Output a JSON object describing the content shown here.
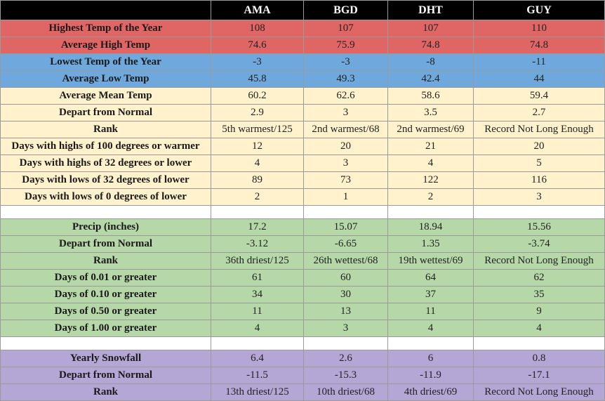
{
  "header": {
    "corner": "",
    "stations": [
      "AMA",
      "BGD",
      "DHT",
      "GUY"
    ]
  },
  "colors": {
    "red": "#e06666",
    "blue": "#6fa8dc",
    "yellow": "#fff2cc",
    "green": "#b6d7a8",
    "purple": "#b4a7d6",
    "header": "#000000"
  },
  "rows": [
    {
      "label": "Highest Temp of the Year",
      "values": [
        "108",
        "107",
        "107",
        "110"
      ]
    },
    {
      "label": "Average High Temp",
      "values": [
        "74.6",
        "75.9",
        "74.8",
        "74.8"
      ]
    },
    {
      "label": "Lowest Temp of the Year",
      "values": [
        "-3",
        "-3",
        "-8",
        "-11"
      ]
    },
    {
      "label": "Average Low Temp",
      "values": [
        "45.8",
        "49.3",
        "42.4",
        "44"
      ]
    },
    {
      "label": "Average Mean Temp",
      "values": [
        "60.2",
        "62.6",
        "58.6",
        "59.4"
      ]
    },
    {
      "label": "Depart from Normal",
      "values": [
        "2.9",
        "3",
        "3.5",
        "2.7"
      ]
    },
    {
      "label": "Rank",
      "values": [
        "5th warmest/125",
        "2nd warmest/68",
        "2nd warmest/69",
        "Record Not Long Enough"
      ]
    },
    {
      "label": "Days with highs of 100 degrees or warmer",
      "values": [
        "12",
        "20",
        "21",
        "20"
      ]
    },
    {
      "label": "Days with highs of 32 degrees or lower",
      "values": [
        "4",
        "3",
        "4",
        "5"
      ]
    },
    {
      "label": "Days with lows of 32 degrees of lower",
      "values": [
        "89",
        "73",
        "122",
        "116"
      ]
    },
    {
      "label": "Days with lows of 0 degrees of lower",
      "values": [
        "2",
        "1",
        "2",
        "3"
      ]
    },
    {
      "label": "Precip (inches)",
      "values": [
        "17.2",
        "15.07",
        "18.94",
        "15.56"
      ]
    },
    {
      "label": "Depart from Normal",
      "values": [
        "-3.12",
        "-6.65",
        "1.35",
        "-3.74"
      ]
    },
    {
      "label": "Rank",
      "values": [
        "36th driest/125",
        "26th wettest/68",
        "19th wettest/69",
        "Record Not Long Enough"
      ]
    },
    {
      "label": "Days of 0.01 or greater",
      "values": [
        "61",
        "60",
        "64",
        "62"
      ]
    },
    {
      "label": "Days of 0.10 or greater",
      "values": [
        "34",
        "30",
        "37",
        "35"
      ]
    },
    {
      "label": "Days of 0.50 or greater",
      "values": [
        "11",
        "13",
        "11",
        "9"
      ]
    },
    {
      "label": "Days of 1.00 or greater",
      "values": [
        "4",
        "3",
        "4",
        "4"
      ]
    },
    {
      "label": "Yearly Snowfall",
      "values": [
        "6.4",
        "2.6",
        "6",
        "0.8"
      ]
    },
    {
      "label": "Depart from Normal",
      "values": [
        "-11.5",
        "-15.3",
        "-11.9",
        "-17.1"
      ]
    },
    {
      "label": "Rank",
      "values": [
        "13th driest/125",
        "10th driest/68",
        "4th driest/69",
        "Record Not Long Enough"
      ]
    }
  ]
}
